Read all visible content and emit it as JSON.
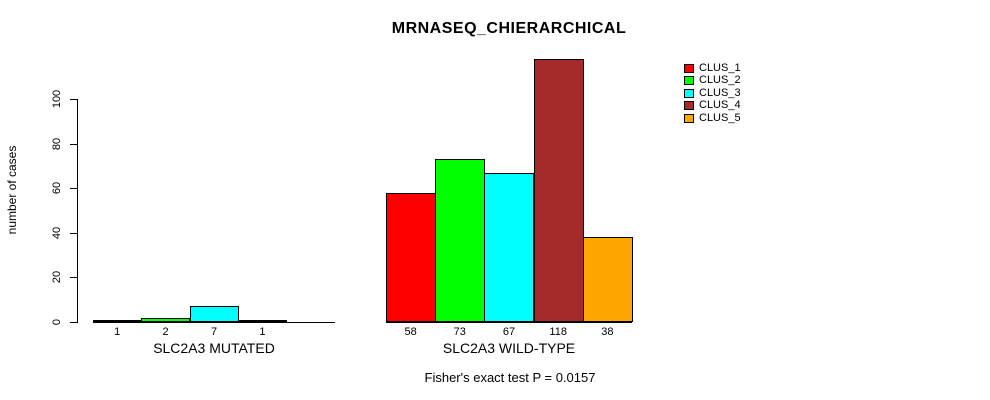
{
  "chart_data": {
    "type": "bar",
    "title": "MRNASEQ_CHIERARCHICAL",
    "ylabel": "number of cases",
    "xlabel": "",
    "ylim": [
      0,
      120
    ],
    "yticks": [
      0,
      20,
      40,
      60,
      80,
      100
    ],
    "grid": false,
    "legend_position": "right",
    "series_names": [
      "CLUS_1",
      "CLUS_2",
      "CLUS_3",
      "CLUS_4",
      "CLUS_5"
    ],
    "series_colors": [
      "#FF0000",
      "#00FF00",
      "#00FFFF",
      "#A52A2A",
      "#FFA500"
    ],
    "groups": [
      {
        "label": "SLC2A3 MUTATED",
        "values": [
          1,
          2,
          7,
          1,
          0
        ],
        "value_labels": [
          "1",
          "2",
          "7",
          "1",
          ""
        ]
      },
      {
        "label": "SLC2A3 WILD-TYPE",
        "values": [
          58,
          73,
          67,
          118,
          38
        ],
        "value_labels": [
          "58",
          "73",
          "67",
          "118",
          "38"
        ]
      }
    ],
    "annotation": "Fisher's exact test P = 0.0157"
  }
}
